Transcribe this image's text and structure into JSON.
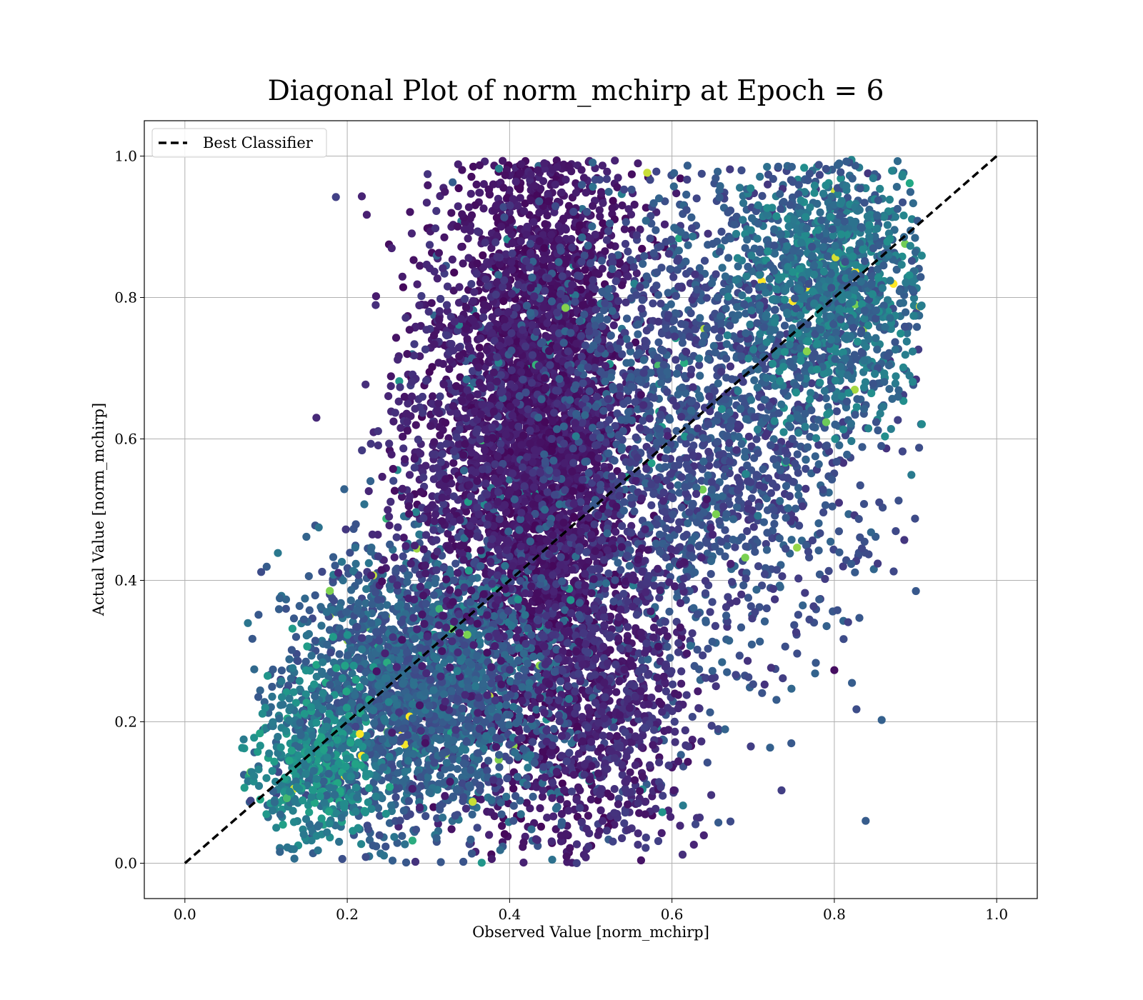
{
  "chart_data": {
    "type": "scatter",
    "title": "Diagonal Plot of norm_mchirp at Epoch = 6",
    "xlabel": "Observed Value [norm_mchirp]",
    "ylabel": "Actual Value [norm_mchirp]",
    "xlim": [
      -0.05,
      1.05
    ],
    "ylim": [
      -0.05,
      1.05
    ],
    "xticks": [
      "0.0",
      "0.2",
      "0.4",
      "0.6",
      "0.8",
      "1.0"
    ],
    "yticks": [
      "0.0",
      "0.2",
      "0.4",
      "0.6",
      "0.8",
      "1.0"
    ],
    "grid": true,
    "legend": {
      "placement": "upper-left",
      "entries": [
        "Best Classifier"
      ]
    },
    "colormap": "viridis",
    "reference_line": {
      "name": "Best Classifier",
      "x": [
        0,
        1
      ],
      "y": [
        0,
        1
      ],
      "style": "dashed",
      "color": "#000000"
    },
    "series": [
      {
        "clusters": [
          {
            "x": 0.44,
            "y": 0.6,
            "sx": 0.055,
            "sy": 0.26,
            "count": 4200,
            "c": [
              0.02,
              0.14
            ]
          },
          {
            "x": 0.63,
            "y": 0.62,
            "sx": 0.11,
            "sy": 0.18,
            "count": 2200,
            "c": [
              0.18,
              0.42
            ]
          },
          {
            "x": 0.8,
            "y": 0.82,
            "sx": 0.06,
            "sy": 0.09,
            "count": 1300,
            "c": [
              0.3,
              0.62
            ]
          },
          {
            "x": 0.29,
            "y": 0.25,
            "sx": 0.08,
            "sy": 0.1,
            "count": 2300,
            "c": [
              0.26,
              0.5
            ]
          },
          {
            "x": 0.16,
            "y": 0.14,
            "sx": 0.04,
            "sy": 0.06,
            "count": 500,
            "c": [
              0.38,
              0.75
            ]
          },
          {
            "x": 0.34,
            "y": 0.58,
            "sx": 0.05,
            "sy": 0.18,
            "count": 700,
            "c": [
              0.05,
              0.22
            ]
          },
          {
            "x": 0.53,
            "y": 0.24,
            "sx": 0.05,
            "sy": 0.14,
            "count": 700,
            "c": [
              0.06,
              0.24
            ]
          }
        ]
      }
    ],
    "outliers": [
      {
        "x": 0.186,
        "y": 0.942
      },
      {
        "x": 0.218,
        "y": 0.943
      },
      {
        "x": 0.224,
        "y": 0.917
      },
      {
        "x": 0.162,
        "y": 0.63
      },
      {
        "x": 0.8,
        "y": 0.273
      },
      {
        "x": 0.735,
        "y": 0.103
      },
      {
        "x": 0.672,
        "y": 0.059
      },
      {
        "x": 0.284,
        "y": 0.002
      },
      {
        "x": 0.343,
        "y": 0.002
      },
      {
        "x": 0.7,
        "y": 0.253
      },
      {
        "x": 0.61,
        "y": 0.053
      },
      {
        "x": 0.629,
        "y": 0.055
      }
    ]
  }
}
